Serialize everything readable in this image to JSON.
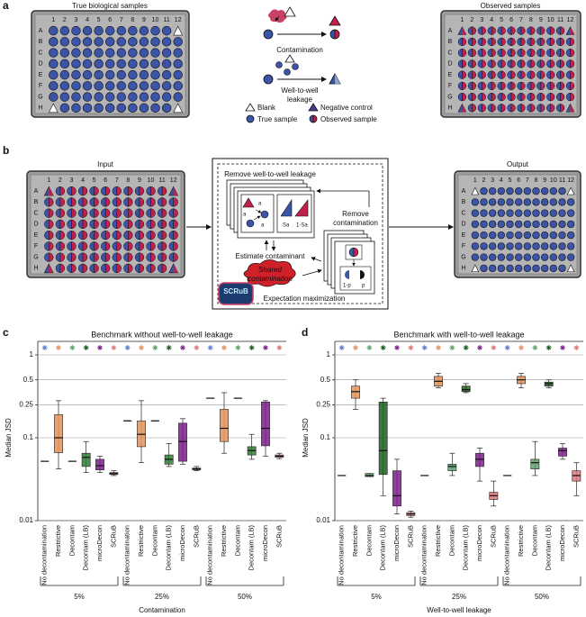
{
  "panel_labels": [
    "a",
    "b",
    "c",
    "d"
  ],
  "plate": {
    "rows": [
      "A",
      "B",
      "C",
      "D",
      "E",
      "F",
      "G",
      "H"
    ],
    "cols": [
      "1",
      "2",
      "3",
      "4",
      "5",
      "6",
      "7",
      "8",
      "9",
      "10",
      "11",
      "12"
    ]
  },
  "panel_a": {
    "left_title": "True biological samples",
    "right_title": "Observed samples",
    "contamination": "Contamination",
    "leakage": [
      "Well-to-well",
      "leakage"
    ],
    "legend": [
      "Blank",
      "Negative control",
      "True sample",
      "Observed sample"
    ]
  },
  "panel_b": {
    "input": "Input",
    "output": "Output",
    "remove_leakage": "Remove well-to-well leakage",
    "remove_contamination": [
      "Remove",
      "contamination"
    ],
    "estimate": "Estimate contaminant",
    "shared": [
      "Shared",
      "contamination"
    ],
    "em": "Expectation maximization",
    "logo": "SCRuB",
    "symbols": [
      "a",
      "a",
      "a",
      "Sa",
      "1-Sa",
      "1-p",
      "p"
    ]
  },
  "chart_data": [
    {
      "type": "box",
      "title": "Benchmark without well-to-well leakage",
      "ylabel": "Median JSD",
      "xlabel": "Contamination",
      "scale": "log",
      "grid": true,
      "ylim": [
        0.01,
        1
      ],
      "yticks": [
        0.01,
        0.1,
        0.25,
        0.5,
        1
      ],
      "categories": [
        "5%",
        "25%",
        "50%"
      ],
      "series": [
        {
          "name": "No decontamination",
          "color": "#222222",
          "star_color": "#5b7fd0",
          "values": [
            [
              0.052,
              0.052,
              0.052,
              0.052,
              0.052
            ],
            [
              0.16,
              0.16,
              0.16,
              0.16,
              0.16
            ],
            [
              0.3,
              0.3,
              0.3,
              0.3,
              0.3
            ]
          ]
        },
        {
          "name": "Restrictive",
          "color": "#e3935c",
          "star_color": "#e3935c",
          "values": [
            [
              0.042,
              0.066,
              0.1,
              0.19,
              0.28
            ],
            [
              0.05,
              0.078,
              0.11,
              0.16,
              0.28
            ],
            [
              0.065,
              0.09,
              0.13,
              0.22,
              0.35
            ]
          ]
        },
        {
          "name": "Decontam",
          "color": "#222222",
          "star_color": "#5fa06e",
          "values": [
            [
              0.052,
              0.052,
              0.052,
              0.052,
              0.052
            ],
            [
              0.16,
              0.16,
              0.16,
              0.16,
              0.16
            ],
            [
              0.3,
              0.3,
              0.3,
              0.3,
              0.3
            ]
          ]
        },
        {
          "name": "Decontam (LB)",
          "color": "#2e7d32",
          "star_color": "#1b5e20",
          "values": [
            [
              0.038,
              0.045,
              0.058,
              0.065,
              0.09
            ],
            [
              0.045,
              0.048,
              0.055,
              0.062,
              0.085
            ],
            [
              0.055,
              0.062,
              0.07,
              0.078,
              0.11
            ]
          ]
        },
        {
          "name": "microDecon",
          "color": "#7b1f8a",
          "star_color": "#7b1f8a",
          "values": [
            [
              0.038,
              0.041,
              0.046,
              0.055,
              0.06
            ],
            [
              0.048,
              0.052,
              0.09,
              0.15,
              0.17
            ],
            [
              0.06,
              0.08,
              0.13,
              0.27,
              0.28
            ]
          ]
        },
        {
          "name": "SCRuB",
          "color": "#d9787a",
          "star_color": "#d9787a",
          "values": [
            [
              0.035,
              0.036,
              0.037,
              0.038,
              0.04
            ],
            [
              0.04,
              0.041,
              0.042,
              0.043,
              0.045
            ],
            [
              0.056,
              0.058,
              0.06,
              0.062,
              0.065
            ]
          ]
        }
      ]
    },
    {
      "type": "box",
      "title": "Benchmark with well-to-well leakage",
      "ylabel": "Median JSD",
      "xlabel": "Well-to-well leakage",
      "scale": "log",
      "grid": true,
      "ylim": [
        0.01,
        1
      ],
      "yticks": [
        0.01,
        0.1,
        0.25,
        0.5,
        1
      ],
      "categories": [
        "5%",
        "25%",
        "50%"
      ],
      "series": [
        {
          "name": "No decontamination",
          "color": "#222222",
          "star_color": "#5b7fd0",
          "values": [
            [
              0.035,
              0.035,
              0.035,
              0.035,
              0.035
            ],
            [
              0.035,
              0.035,
              0.035,
              0.035,
              0.035
            ],
            [
              0.035,
              0.035,
              0.035,
              0.035,
              0.035
            ]
          ]
        },
        {
          "name": "Restrictive",
          "color": "#e3935c",
          "star_color": "#e3935c",
          "values": [
            [
              0.22,
              0.3,
              0.36,
              0.42,
              0.5
            ],
            [
              0.4,
              0.42,
              0.48,
              0.55,
              0.6
            ],
            [
              0.4,
              0.45,
              0.5,
              0.55,
              0.6
            ]
          ]
        },
        {
          "name": "Decontam",
          "color": "#5fa06e",
          "star_color": "#5fa06e",
          "values": [
            [
              0.034,
              0.034,
              0.035,
              0.037,
              0.037
            ],
            [
              0.035,
              0.04,
              0.045,
              0.048,
              0.065
            ],
            [
              0.035,
              0.042,
              0.05,
              0.055,
              0.09
            ]
          ]
        },
        {
          "name": "Decontam (LB)",
          "color": "#1b5e20",
          "star_color": "#1b5e20",
          "values": [
            [
              0.02,
              0.036,
              0.07,
              0.27,
              0.3
            ],
            [
              0.35,
              0.36,
              0.38,
              0.42,
              0.45
            ],
            [
              0.4,
              0.42,
              0.45,
              0.47,
              0.5
            ]
          ]
        },
        {
          "name": "microDecon",
          "color": "#7b1f8a",
          "star_color": "#7b1f8a",
          "values": [
            [
              0.012,
              0.015,
              0.02,
              0.04,
              0.055
            ],
            [
              0.03,
              0.045,
              0.055,
              0.065,
              0.075
            ],
            [
              0.055,
              0.06,
              0.07,
              0.075,
              0.085
            ]
          ]
        },
        {
          "name": "SCRuB",
          "color": "#d9787a",
          "star_color": "#d9787a",
          "values": [
            [
              0.011,
              0.0115,
              0.012,
              0.0125,
              0.013
            ],
            [
              0.015,
              0.018,
              0.02,
              0.022,
              0.03
            ],
            [
              0.02,
              0.03,
              0.035,
              0.04,
              0.05
            ]
          ]
        }
      ]
    }
  ]
}
